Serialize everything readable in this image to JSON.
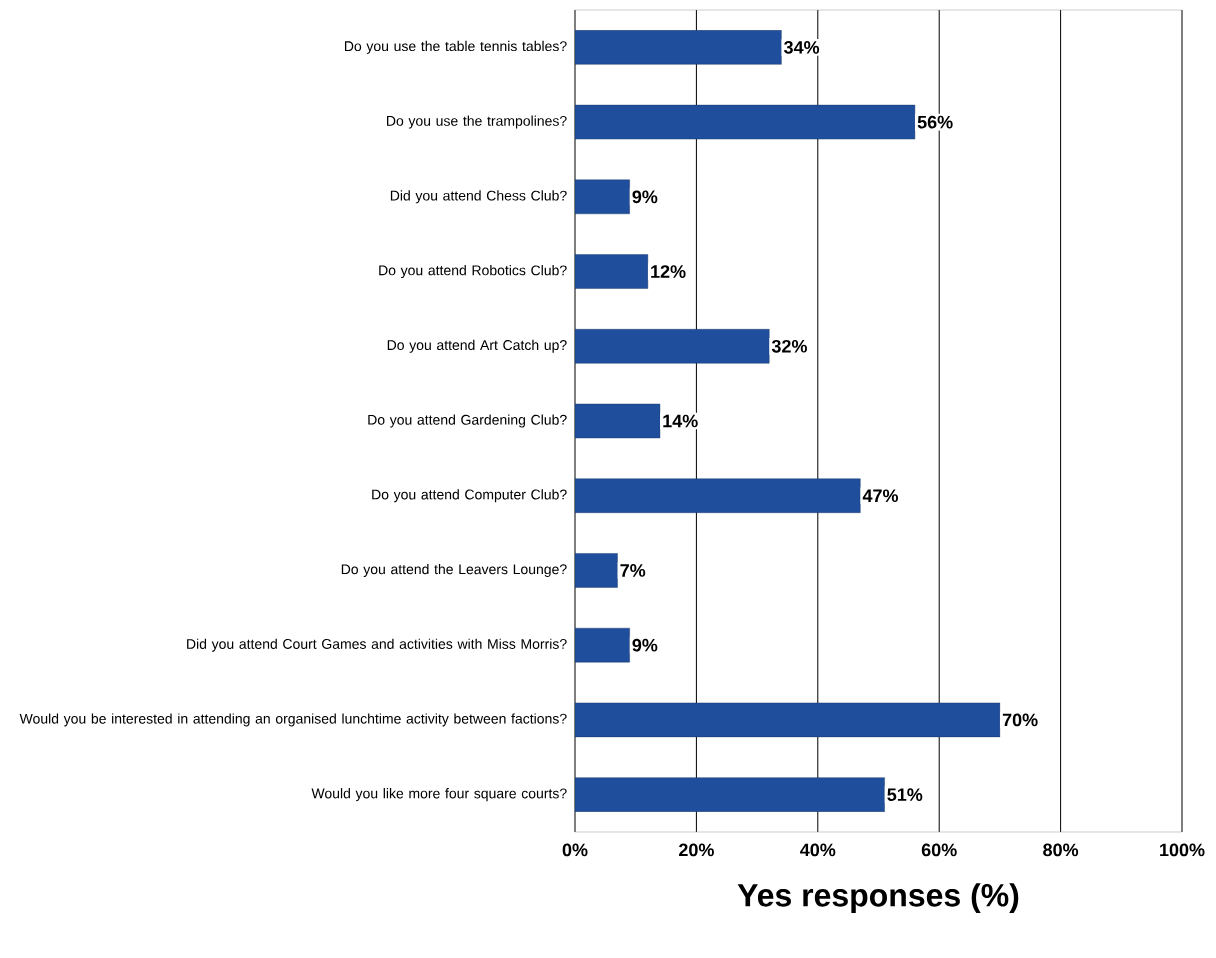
{
  "chart_data": {
    "type": "bar",
    "orientation": "horizontal",
    "xlabel": "Yes responses (%)",
    "categories": [
      "Do you use the table tennis tables?",
      "Do you use the trampolines?",
      "Did you attend Chess Club?",
      "Do you attend Robotics Club?",
      "Do you attend Art Catch up?",
      "Do you attend Gardening Club?",
      "Do you attend Computer Club?",
      "Do you attend the Leavers Lounge?",
      "Did you attend Court Games and activities with Miss Morris?",
      "Would you be interested in attending an organised lunchtime activity between factions?",
      "Would you like more four square courts?"
    ],
    "values": [
      34,
      56,
      9,
      12,
      32,
      14,
      47,
      7,
      9,
      70,
      51
    ],
    "value_labels": [
      "34%",
      "56%",
      "9%",
      "12%",
      "32%",
      "14%",
      "47%",
      "7%",
      "9%",
      "70%",
      "51%"
    ],
    "color": "#1f4e9c",
    "xlim": [
      0,
      100
    ],
    "xticks": [
      {
        "value": 0,
        "label": "0%"
      },
      {
        "value": 20,
        "label": "20%"
      },
      {
        "value": 40,
        "label": "40%"
      },
      {
        "value": 60,
        "label": "60%"
      },
      {
        "value": 80,
        "label": "80%"
      },
      {
        "value": 100,
        "label": "100%"
      }
    ],
    "grid": "x"
  }
}
